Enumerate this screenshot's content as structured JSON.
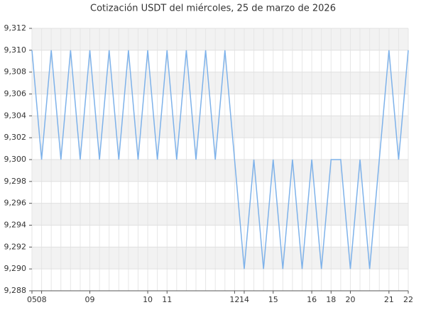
{
  "chart_data": {
    "type": "line",
    "title": "Cotización USDT del miércoles, 25 de marzo de 2026",
    "categories": [
      "05",
      "08",
      null,
      null,
      null,
      null,
      "09",
      null,
      null,
      null,
      null,
      null,
      "10",
      null,
      "11",
      null,
      null,
      null,
      null,
      null,
      null,
      "12",
      "14",
      null,
      null,
      "15",
      null,
      null,
      null,
      "16",
      null,
      "18",
      null,
      "20",
      null,
      null,
      null,
      "21",
      null,
      "22"
    ],
    "series": [
      {
        "color": "#7eb2ea",
        "values": [
          9.31,
          9.3,
          9.31,
          9.3,
          9.31,
          9.3,
          9.31,
          9.3,
          9.31,
          9.3,
          9.31,
          9.3,
          9.31,
          9.3,
          9.31,
          9.3,
          9.31,
          9.3,
          9.31,
          9.3,
          9.31,
          9.3,
          9.29,
          9.3,
          9.29,
          9.3,
          9.29,
          9.3,
          9.29,
          9.3,
          9.29,
          9.3,
          9.3,
          9.29,
          9.3,
          9.29,
          9.3,
          9.31,
          9.3,
          9.31
        ]
      }
    ],
    "ylim": [
      9.288,
      9.312
    ],
    "yticks": [
      {
        "value": 9.288,
        "label": "9,288"
      },
      {
        "value": 9.29,
        "label": "9,290"
      },
      {
        "value": 9.292,
        "label": "9,292"
      },
      {
        "value": 9.294,
        "label": "9,294"
      },
      {
        "value": 9.296,
        "label": "9,296"
      },
      {
        "value": 9.298,
        "label": "9,298"
      },
      {
        "value": 9.3,
        "label": "9,300"
      },
      {
        "value": 9.302,
        "label": "9,302"
      },
      {
        "value": 9.304,
        "label": "9,304"
      },
      {
        "value": 9.306,
        "label": "9,306"
      },
      {
        "value": 9.308,
        "label": "9,308"
      },
      {
        "value": 9.31,
        "label": "9,310"
      },
      {
        "value": 9.312,
        "label": "9,312"
      }
    ],
    "grid": true
  }
}
